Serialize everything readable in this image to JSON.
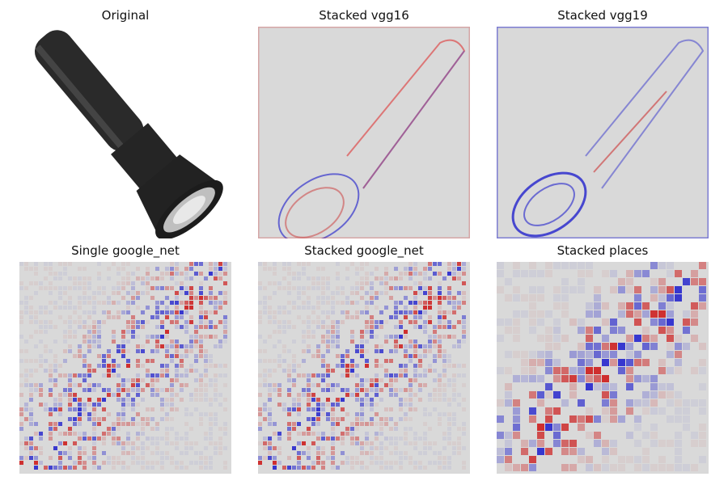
{
  "figure": {
    "panels": [
      {
        "id": "original",
        "title": "Original",
        "kind": "photo"
      },
      {
        "id": "vgg16",
        "title": "Stacked vgg16",
        "kind": "saliency-smooth"
      },
      {
        "id": "vgg19",
        "title": "Stacked vgg19",
        "kind": "saliency-smooth"
      },
      {
        "id": "single-googlenet",
        "title": "Single google_net",
        "kind": "saliency-grid"
      },
      {
        "id": "stacked-googlenet",
        "title": "Stacked google_net",
        "kind": "saliency-grid"
      },
      {
        "id": "stacked-places",
        "title": "Stacked places",
        "kind": "saliency-coarse"
      }
    ],
    "colors": {
      "background": "#d9d9d9",
      "positive": "#cc1111",
      "negative": "#1a1acc",
      "flashlight_body": "#2b2b2b"
    }
  }
}
